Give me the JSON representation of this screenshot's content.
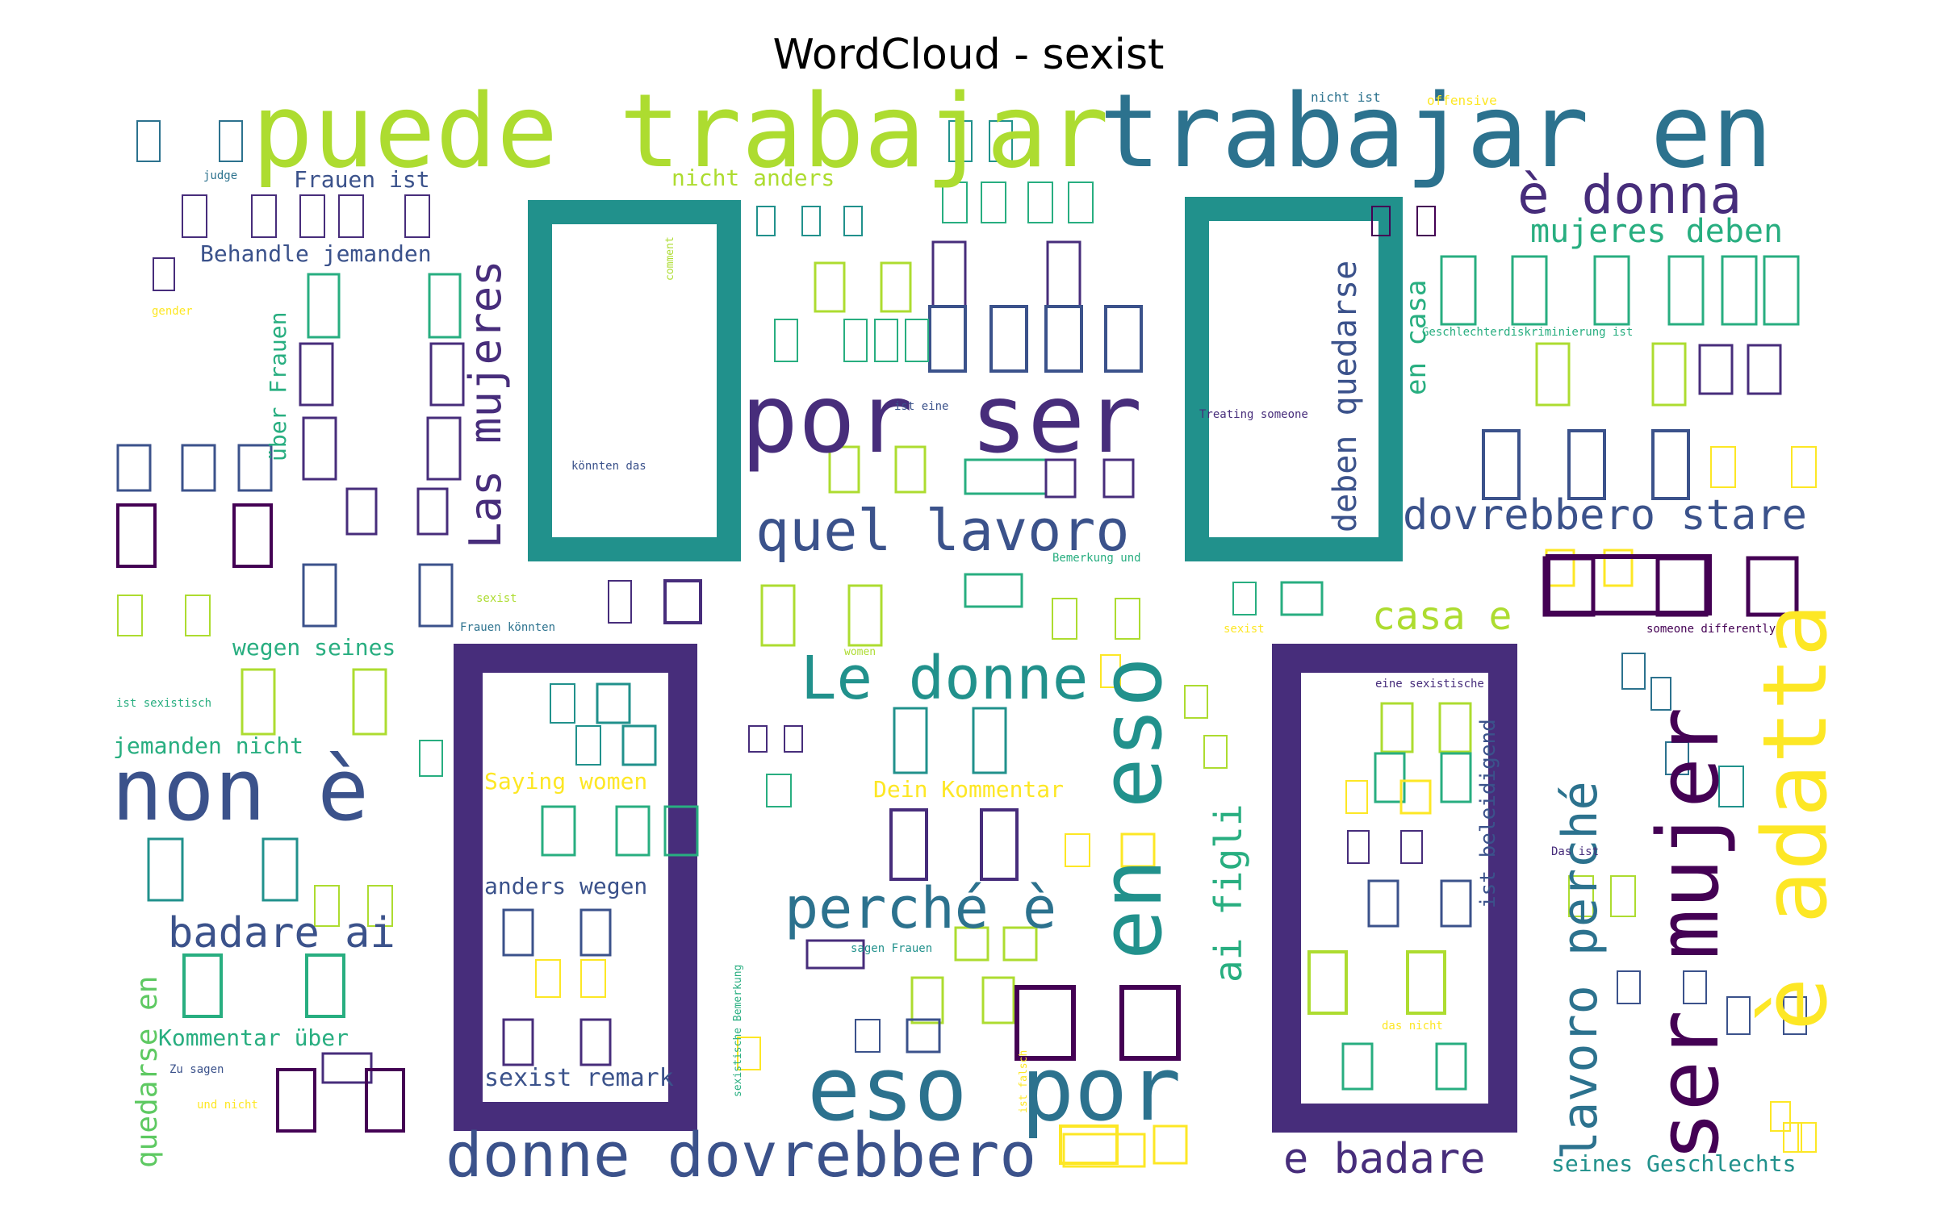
{
  "chart_data": {
    "type": "wordcloud",
    "title": "WordCloud - sexist",
    "palette": [
      "#440154",
      "#472d7b",
      "#3b528b",
      "#2c728e",
      "#21918c",
      "#28ae80",
      "#5ec962",
      "#addc30",
      "#fde725"
    ],
    "words": [
      {
        "text": "puede trabajar",
        "rank": 1
      },
      {
        "text": "trabajar en",
        "rank": 2
      },
      {
        "text": "por ser",
        "rank": 3
      },
      {
        "text": "non è",
        "rank": 4
      },
      {
        "text": "eso por",
        "rank": 5
      },
      {
        "text": "en eso",
        "rank": 6
      },
      {
        "text": "ser mujer",
        "rank": 7
      },
      {
        "text": "è adatta",
        "rank": 8
      },
      {
        "text": "donne dovrebbero",
        "rank": 9
      },
      {
        "text": "Le donne",
        "rank": 10
      },
      {
        "text": "perché è",
        "rank": 11
      },
      {
        "text": "quel lavoro",
        "rank": 12
      },
      {
        "text": "è donna",
        "rank": 13
      },
      {
        "text": "lavoro perché",
        "rank": 14
      },
      {
        "text": "dovrebbero stare",
        "rank": 15
      },
      {
        "text": "Las mujeres",
        "rank": 16
      },
      {
        "text": "badare ai",
        "rank": 17
      },
      {
        "text": "e badare",
        "rank": 18
      },
      {
        "text": "casa e",
        "rank": 19
      },
      {
        "text": "deben quedarse",
        "rank": 20
      },
      {
        "text": "ai figli",
        "rank": 21
      },
      {
        "text": "mujeres deben",
        "rank": 22
      },
      {
        "text": "quedarse en",
        "rank": 23
      },
      {
        "text": "en casa",
        "rank": 24
      },
      {
        "text": "Behandle jemanden",
        "rank": 25
      },
      {
        "text": "Frauen ist",
        "rank": 26
      },
      {
        "text": "nicht anders",
        "rank": 27
      },
      {
        "text": "wegen seines",
        "rank": 28
      },
      {
        "text": "jemanden nicht",
        "rank": 29
      },
      {
        "text": "über Frauen",
        "rank": 30
      },
      {
        "text": "Saying women",
        "rank": 31
      },
      {
        "text": "anders wegen",
        "rank": 32
      },
      {
        "text": "sexist remark",
        "rank": 33
      },
      {
        "text": "Dein Kommentar",
        "rank": 34
      },
      {
        "text": "Kommentar über",
        "rank": 35
      },
      {
        "text": "seines Geschlechts",
        "rank": 36
      },
      {
        "text": "ist beleidigend",
        "rank": 37
      },
      {
        "text": "nicht ist",
        "rank": 38
      },
      {
        "text": "offensive",
        "rank": 39
      },
      {
        "text": "judge",
        "rank": 40
      },
      {
        "text": "gender",
        "rank": 41
      },
      {
        "text": "comment",
        "rank": 42
      },
      {
        "text": "ist eine",
        "rank": 43
      },
      {
        "text": "könnten das",
        "rank": 44
      },
      {
        "text": "Treating someone",
        "rank": 45
      },
      {
        "text": "Geschlechterdiskriminierung ist",
        "rank": 46
      },
      {
        "text": "Bemerkung und",
        "rank": 47
      },
      {
        "text": "ist sexistisch",
        "rank": 48
      },
      {
        "text": "sexist",
        "rank": 49
      },
      {
        "text": "Frauen könnten",
        "rank": 50
      },
      {
        "text": "women",
        "rank": 51
      },
      {
        "text": "sexist",
        "rank": 52
      },
      {
        "text": "someone differently",
        "rank": 53
      },
      {
        "text": "eine sexistische",
        "rank": 54
      },
      {
        "text": "Das ist",
        "rank": 55
      },
      {
        "text": "sagen Frauen",
        "rank": 56
      },
      {
        "text": "sexistische Bemerkung",
        "rank": 57
      },
      {
        "text": "ist falsch",
        "rank": 58
      },
      {
        "text": "das nicht",
        "rank": 59
      },
      {
        "text": "Zu sagen",
        "rank": 60
      },
      {
        "text": "und nicht",
        "rank": 61
      }
    ]
  }
}
